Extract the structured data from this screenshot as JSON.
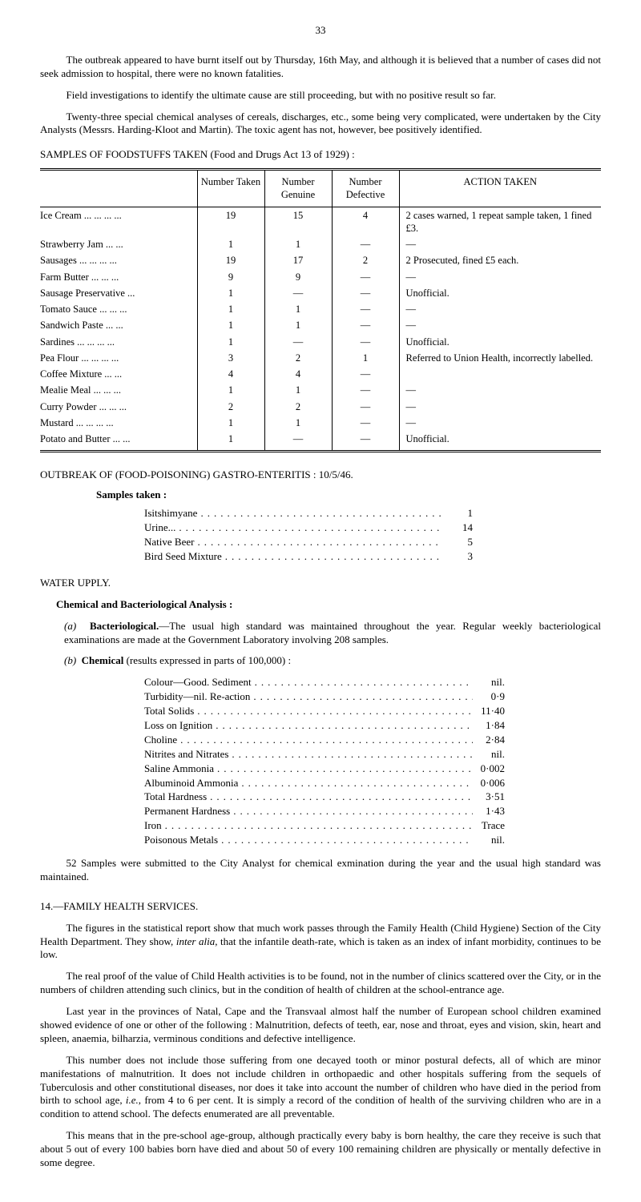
{
  "page_number": "33",
  "paragraphs": {
    "intro1": "The outbreak appeared to have burnt itself out by Thursday, 16th May, and although it is believed that a number of cases did not seek admission to hospital, there were no known fatalities.",
    "intro2": "Field investigations to identify the ultimate cause are still proceeding, but with no positive result so far.",
    "intro3": "Twenty-three special chemical analyses of cereals, discharges, etc., some being very complicated, were undertaken by the City Analysts (Messrs. Harding-Kloot and Martin). The toxic agent has not, however, bee positively identified."
  },
  "samples_title": "SAMPLES OF FOODSTUFFS TAKEN (Food and Drugs Act 13 of 1929) :",
  "table": {
    "headers": [
      "",
      "Number Taken",
      "Number Genuine",
      "Number Defective",
      "ACTION TAKEN"
    ],
    "rows": [
      [
        "Ice Cream ...  ...  ...  ...",
        "19",
        "15",
        "4",
        "2 cases warned, 1 repeat sample taken, 1 fined £3."
      ],
      [
        "Strawberry Jam      ...  ...",
        "1",
        "1",
        "—",
        "—"
      ],
      [
        "Sausages   ...  ...  ...  ...",
        "19",
        "17",
        "2",
        "2 Prosecuted, fined £5 each."
      ],
      [
        "Farm Butter    ...  ...  ...",
        "9",
        "9",
        "—",
        "—"
      ],
      [
        "Sausage Preservative      ...",
        "1",
        "—",
        "—",
        "Unofficial."
      ],
      [
        "Tomato Sauce ...  ...  ...",
        "1",
        "1",
        "—",
        "—"
      ],
      [
        "Sandwich Paste     ...  ...",
        "1",
        "1",
        "—",
        "—"
      ],
      [
        "Sardines    ...  ...  ...  ...",
        "1",
        "—",
        "—",
        "Unofficial."
      ],
      [
        "Pea Flour ...  ...  ...  ...",
        "3",
        "2",
        "1",
        "Referred to Union Health, incorrectly labelled."
      ],
      [
        "Coffee Mixture       ...  ...",
        "4",
        "4",
        "—",
        ""
      ],
      [
        "Mealie Meal    ...  ...  ...",
        "1",
        "1",
        "—",
        "—"
      ],
      [
        "Curry Powder  ...  ...  ...",
        "2",
        "2",
        "—",
        "—"
      ],
      [
        "Mustard    ...  ...  ...  ...",
        "1",
        "1",
        "—",
        "—"
      ],
      [
        "Potato and Butter  ...  ...",
        "1",
        "—",
        "—",
        "Unofficial."
      ]
    ]
  },
  "outbreak_title": "OUTBREAK OF (FOOD-POISONING) GASTRO-ENTERITIS :  10/5/46.",
  "samples_taken_label": "Samples taken :",
  "samples_taken": [
    {
      "label": "Isitshimyane",
      "value": "1"
    },
    {
      "label": "Urine...",
      "value": "14"
    },
    {
      "label": "Native Beer",
      "value": "5"
    },
    {
      "label": "Bird Seed Mixture",
      "value": "3"
    }
  ],
  "water_supply_title": "WATER UPPLY.",
  "chemical_title": "Chemical and Bacteriological Analysis :",
  "bacteriological_label": "(a)",
  "bacteriological_bold": "Bacteriological.",
  "bacteriological_text": "—The usual high standard was maintained throughout the year. Regular weekly bacteriological examinations are made at the Government Laboratory involving 208 samples.",
  "chemical_label": "(b)",
  "chemical_bold": "Chemical",
  "chemical_text": " (results expressed in parts of 100,000) :",
  "chemical_rows": [
    {
      "label": "Colour—Good.  Sediment",
      "value": "nil."
    },
    {
      "label": "Turbidity—nil.  Re-action",
      "value": "0·9"
    },
    {
      "label": "Total Solids",
      "value": "11·40"
    },
    {
      "label": "Loss on Ignition",
      "value": "1·84"
    },
    {
      "label": "Choline",
      "value": "2·84"
    },
    {
      "label": "Nitrites and Nitrates",
      "value": "nil."
    },
    {
      "label": "Saline Ammonia",
      "value": "0·002"
    },
    {
      "label": "Albuminoid Ammonia",
      "value": "0·006"
    },
    {
      "label": "Total Hardness",
      "value": "3·51"
    },
    {
      "label": "Permanent Hardness",
      "value": "1·43"
    },
    {
      "label": "Iron",
      "value": "Trace"
    },
    {
      "label": "Poisonous Metals",
      "value": "nil."
    }
  ],
  "samples_52": "52 Samples were submitted to the City Analyst for chemical exmination during the year and the usual high standard was maintained.",
  "family_health_title": "14.—FAMILY HEALTH SERVICES.",
  "fh_p1": "The figures in the statistical report show that much work passes through the Family Health (Child Hygiene) Section of the City Health Department. They show, ",
  "fh_p1_italic": "inter alia,",
  "fh_p1_cont": " that the infantile death-rate, which is taken as an index of infant morbidity, continues to be low.",
  "fh_p2": "The real proof of the value of Child Health activities is to be found, not in the number of clinics scattered over the City, or in the numbers of children attending such clinics, but in the condition of health of children at the school-entrance age.",
  "fh_p3": "Last year in the provinces of Natal, Cape and the Transvaal almost half the number of European school children examined showed evidence of one or other of the following : Malnutrition, defects of teeth, ear, nose and throat, eyes and vision, skin, heart and spleen, anaemia, bilharzia, verminous conditions and defective intelligence.",
  "fh_p4_a": "This number does not include those suffering from one decayed tooth or minor postural defects, all of which are minor manifestations of malnutrition. It does not include children in orthopaedic and other hospitals suffering from the sequels of Tuberculosis and other constitutional diseases, nor does it take into account the number of children who have died in the period from birth to school age, ",
  "fh_p4_italic": "i.e.,",
  "fh_p4_b": " from 4 to 6 per cent. It is simply a record of the condition of health of the surviving children who are in a condition to attend school. The defects enumerated are all preventable.",
  "fh_p5": "This means that in the pre-school age-group, although practically every baby is born healthy, the care they receive is such that about 5 out of every 100 babies born have died and about 50 of every 100 remaining children are physically or mentally defective in some degree."
}
